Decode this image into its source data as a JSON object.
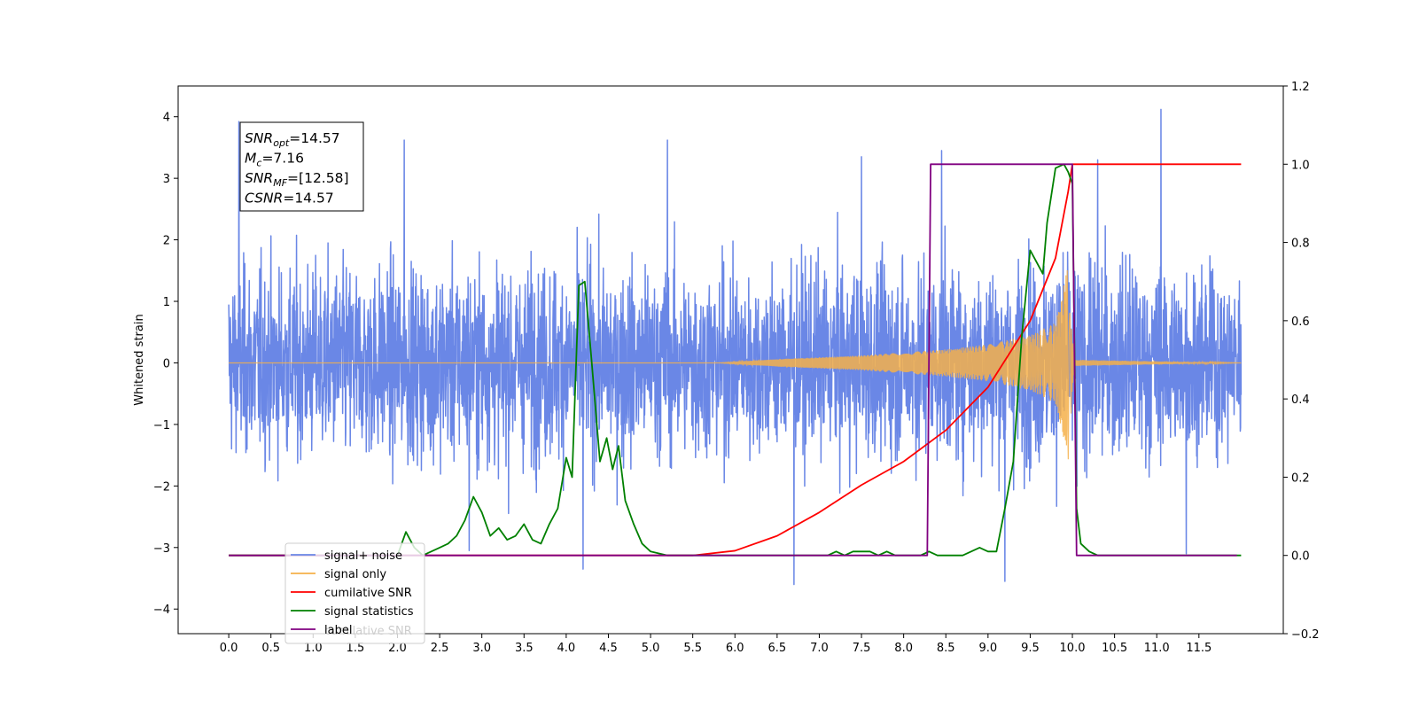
{
  "chart_data": {
    "type": "line",
    "title": "",
    "xlabel": "",
    "ylabel": "Whitened strain",
    "ylabel_right": "",
    "xlim": [
      -0.6,
      12.5
    ],
    "ylim": [
      -4.4,
      4.5
    ],
    "ylim_right": [
      -0.2,
      1.2
    ],
    "x_ticks": [
      0.0,
      0.5,
      1.0,
      1.5,
      2.0,
      2.5,
      3.0,
      3.5,
      4.0,
      4.5,
      5.0,
      5.5,
      6.0,
      6.5,
      7.0,
      7.5,
      8.0,
      8.5,
      9.0,
      9.5,
      10.0,
      10.5,
      11.0,
      11.5
    ],
    "x_tick_labels": [
      "0.0",
      "0.5",
      "1.0",
      "1.5",
      "2.0",
      "2.5",
      "3.0",
      "3.5",
      "4.0",
      "4.5",
      "5.0",
      "5.5",
      "6.0",
      "6.5",
      "7.0",
      "7.5",
      "8.0",
      "8.5",
      "9.0",
      "9.5",
      "10.0",
      "10.5",
      "11.0",
      "11.5"
    ],
    "y_ticks": [
      -4,
      -3,
      -2,
      -1,
      0,
      1,
      2,
      3,
      4
    ],
    "y_tick_labels": [
      "−4",
      "−3",
      "−2",
      "−1",
      "0",
      "1",
      "2",
      "3",
      "4"
    ],
    "y_ticks_right": [
      -0.2,
      0.0,
      0.2,
      0.4,
      0.6,
      0.8,
      1.0,
      1.2
    ],
    "y_tick_labels_right": [
      "−0.2",
      "0.0",
      "0.2",
      "0.4",
      "0.6",
      "0.8",
      "1.0",
      "1.2"
    ],
    "grid": false,
    "legend_position": "lower-left",
    "annotation": {
      "lines": [
        {
          "sym": "SNR",
          "sub": "opt",
          "rest": "=14.57"
        },
        {
          "sym": "M",
          "sub": "c",
          "rest": "=7.16"
        },
        {
          "sym": "SNR",
          "sub": "MF",
          "rest": "=[12.58]"
        },
        {
          "sym": "CSNR",
          "sub": "",
          "rest": "=14.57"
        }
      ]
    },
    "series": [
      {
        "name": "signal+ noise",
        "color": "#6a87e6",
        "axis": "left",
        "description_kind": "noise",
        "x_range": [
          0.0,
          12.0
        ],
        "envelope": [
          [
            0.0,
            2.4
          ],
          [
            0.2,
            2.5
          ],
          [
            2.1,
            2.6
          ],
          [
            4.0,
            2.6
          ],
          [
            6.0,
            2.5
          ],
          [
            8.0,
            2.6
          ],
          [
            9.5,
            2.7
          ],
          [
            10.0,
            2.8
          ],
          [
            12.0,
            2.4
          ]
        ],
        "peaks": [
          {
            "x": 0.12,
            "y": 3.92
          },
          {
            "x": 2.08,
            "y": 3.62
          },
          {
            "x": 5.2,
            "y": 3.62
          },
          {
            "x": 7.5,
            "y": 3.35
          },
          {
            "x": 8.45,
            "y": 3.45
          },
          {
            "x": 10.3,
            "y": 3.3
          },
          {
            "x": 11.05,
            "y": 4.12
          },
          {
            "x": 6.7,
            "y": -3.6
          },
          {
            "x": 9.2,
            "y": -3.55
          },
          {
            "x": 4.2,
            "y": -3.35
          },
          {
            "x": 11.35,
            "y": -3.1
          },
          {
            "x": 2.85,
            "y": -3.05
          }
        ]
      },
      {
        "name": "signal only",
        "color": "#f5b04a",
        "axis": "left",
        "description_kind": "chirp",
        "amplitude_envelope": [
          [
            0.0,
            0.0
          ],
          [
            5.8,
            0.0
          ],
          [
            6.5,
            0.06
          ],
          [
            7.5,
            0.12
          ],
          [
            8.5,
            0.22
          ],
          [
            9.0,
            0.3
          ],
          [
            9.5,
            0.45
          ],
          [
            9.8,
            0.65
          ],
          [
            9.95,
            1.6
          ],
          [
            10.02,
            0.05
          ],
          [
            12.0,
            0.0
          ]
        ]
      },
      {
        "name": "cumilative SNR",
        "color": "#ff0000",
        "axis": "right",
        "x": [
          0.0,
          5.0,
          5.5,
          6.0,
          6.5,
          7.0,
          7.5,
          8.0,
          8.5,
          9.0,
          9.5,
          9.8,
          9.95,
          10.0,
          12.0
        ],
        "y": [
          0.0,
          0.0,
          0.0,
          0.012,
          0.05,
          0.11,
          0.18,
          0.24,
          0.32,
          0.43,
          0.6,
          0.76,
          0.93,
          1.0,
          1.0
        ]
      },
      {
        "name": "signal statistics",
        "color": "#008000",
        "axis": "right",
        "x": [
          0.0,
          2.0,
          2.1,
          2.2,
          2.3,
          2.4,
          2.5,
          2.6,
          2.7,
          2.8,
          2.9,
          3.0,
          3.1,
          3.2,
          3.3,
          3.4,
          3.5,
          3.6,
          3.7,
          3.8,
          3.9,
          4.0,
          4.07,
          4.15,
          4.22,
          4.3,
          4.4,
          4.48,
          4.55,
          4.62,
          4.7,
          4.8,
          4.9,
          5.0,
          5.2,
          5.5,
          6.0,
          6.5,
          7.0,
          7.1,
          7.2,
          7.3,
          7.4,
          7.5,
          7.6,
          7.7,
          7.8,
          7.9,
          8.0,
          8.1,
          8.2,
          8.3,
          8.4,
          8.5,
          8.7,
          8.9,
          9.0,
          9.1,
          9.2,
          9.3,
          9.4,
          9.5,
          9.6,
          9.65,
          9.7,
          9.8,
          9.9,
          9.95,
          10.0,
          10.05,
          10.1,
          10.2,
          10.3,
          10.4,
          10.5,
          10.7,
          12.0
        ],
        "y": [
          0.0,
          0.0,
          0.06,
          0.02,
          0.0,
          0.01,
          0.02,
          0.03,
          0.05,
          0.09,
          0.15,
          0.11,
          0.05,
          0.07,
          0.04,
          0.05,
          0.08,
          0.04,
          0.03,
          0.08,
          0.12,
          0.25,
          0.2,
          0.69,
          0.7,
          0.5,
          0.24,
          0.3,
          0.22,
          0.28,
          0.14,
          0.08,
          0.03,
          0.01,
          0.0,
          0.0,
          0.0,
          0.0,
          0.0,
          0.0,
          0.01,
          0.0,
          0.01,
          0.01,
          0.01,
          0.0,
          0.01,
          0.0,
          0.0,
          0.0,
          0.0,
          0.01,
          0.0,
          0.0,
          0.0,
          0.02,
          0.01,
          0.01,
          0.12,
          0.24,
          0.56,
          0.78,
          0.74,
          0.72,
          0.85,
          0.99,
          1.0,
          0.98,
          0.95,
          0.12,
          0.03,
          0.01,
          0.0,
          0.0,
          0.0,
          0.0,
          0.0
        ]
      },
      {
        "name": "label",
        "color": "#800080",
        "axis": "right",
        "x": [
          0.0,
          8.28,
          8.32,
          10.0,
          10.05,
          11.95
        ],
        "y": [
          0.0,
          0.0,
          1.0,
          1.0,
          0.0,
          0.0
        ]
      }
    ],
    "legend": [
      {
        "label": "signal+ noise",
        "color": "#6a87e6"
      },
      {
        "label": "signal only",
        "color": "#f5b04a"
      },
      {
        "label": "cumilative SNR",
        "color": "#ff0000"
      },
      {
        "label": "signal statistics",
        "color": "#008000"
      },
      {
        "label": "label",
        "color": "#800080"
      }
    ],
    "legend_ghost_text": "cumilative SNR"
  }
}
